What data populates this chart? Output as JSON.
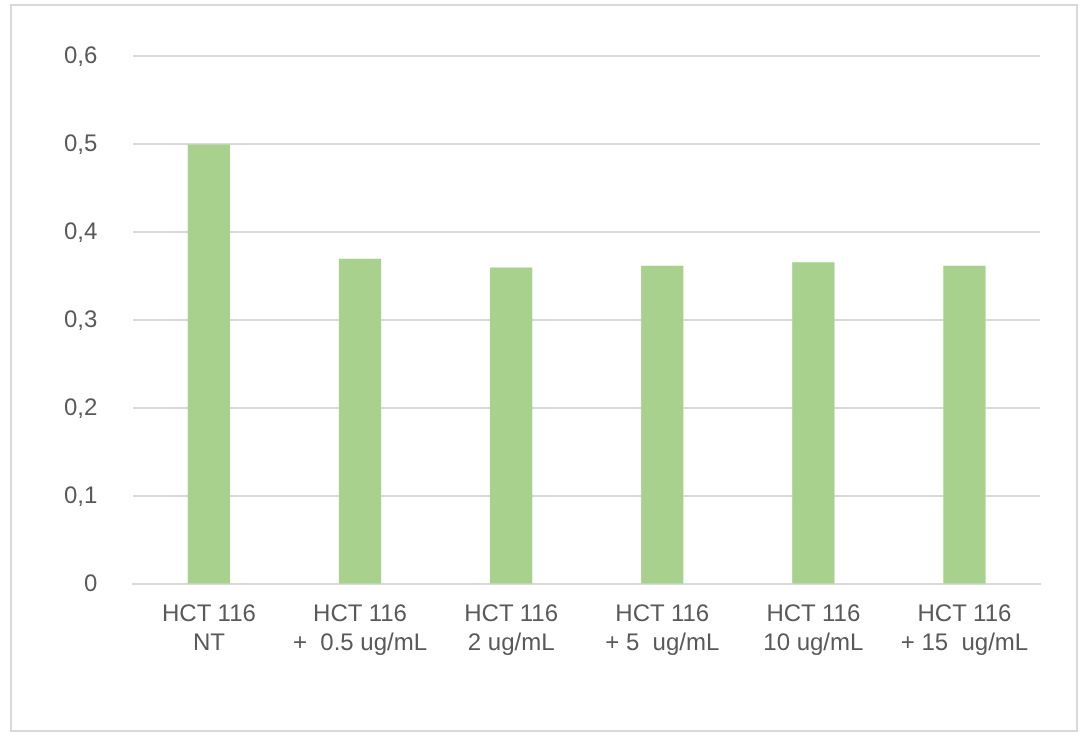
{
  "chart_data": {
    "type": "bar",
    "categories": [
      "HCT 116\nNT",
      "HCT 116\n+  0.5 ug/mL",
      "HCT 116\n2 ug/mL",
      "HCT 116\n+ 5  ug/mL",
      "HCT 116\n10 ug/mL",
      "HCT 116\n+ 15  ug/mL"
    ],
    "values": [
      0.5,
      0.37,
      0.36,
      0.362,
      0.366,
      0.362
    ],
    "color": "#a9d18e",
    "ylim": [
      0,
      0.6
    ],
    "yticks": [
      {
        "value": 0,
        "label": "0"
      },
      {
        "value": 0.1,
        "label": "0,1"
      },
      {
        "value": 0.2,
        "label": "0,2"
      },
      {
        "value": 0.3,
        "label": "0,3"
      },
      {
        "value": 0.4,
        "label": "0,4"
      },
      {
        "value": 0.5,
        "label": "0,5"
      },
      {
        "value": 0.6,
        "label": "0,6"
      }
    ],
    "grid": "y"
  }
}
